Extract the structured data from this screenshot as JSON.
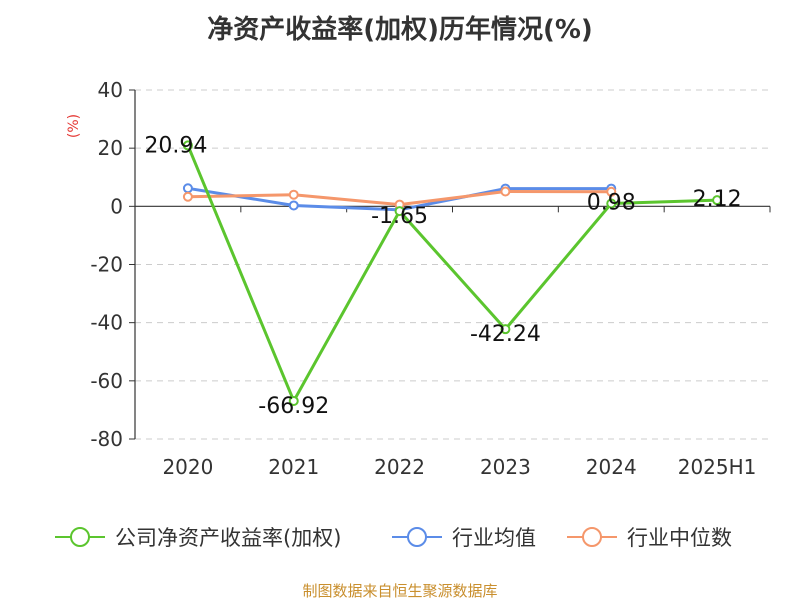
{
  "chart_data": {
    "type": "line",
    "title": "净资产收益率(加权)历年情况(%)",
    "ylabel": "(%)",
    "categories": [
      "2020",
      "2021",
      "2022",
      "2023",
      "2024",
      "2025H1"
    ],
    "ylim": [
      -80,
      40
    ],
    "yticks": [
      40,
      20,
      0,
      -20,
      -40,
      -60,
      -80
    ],
    "grid": true,
    "legend_position": "bottom",
    "series": [
      {
        "name": "公司净资产收益率(加权)",
        "color": "#5bc52e",
        "values": [
          20.94,
          -66.92,
          -1.65,
          -42.24,
          0.98,
          2.12
        ],
        "labels": [
          "20.94",
          "-66.92",
          "-1.65",
          "-42.24",
          "0.98",
          "2.12"
        ]
      },
      {
        "name": "行业均值",
        "color": "#5b8ce8",
        "values": [
          6.2,
          0.3,
          -1.2,
          6.1,
          6.1,
          null
        ]
      },
      {
        "name": "行业中位数",
        "color": "#f5976b",
        "values": [
          3.3,
          4.0,
          0.6,
          5.1,
          5.0,
          null
        ]
      }
    ],
    "source": "制图数据来自恒生聚源数据库"
  }
}
